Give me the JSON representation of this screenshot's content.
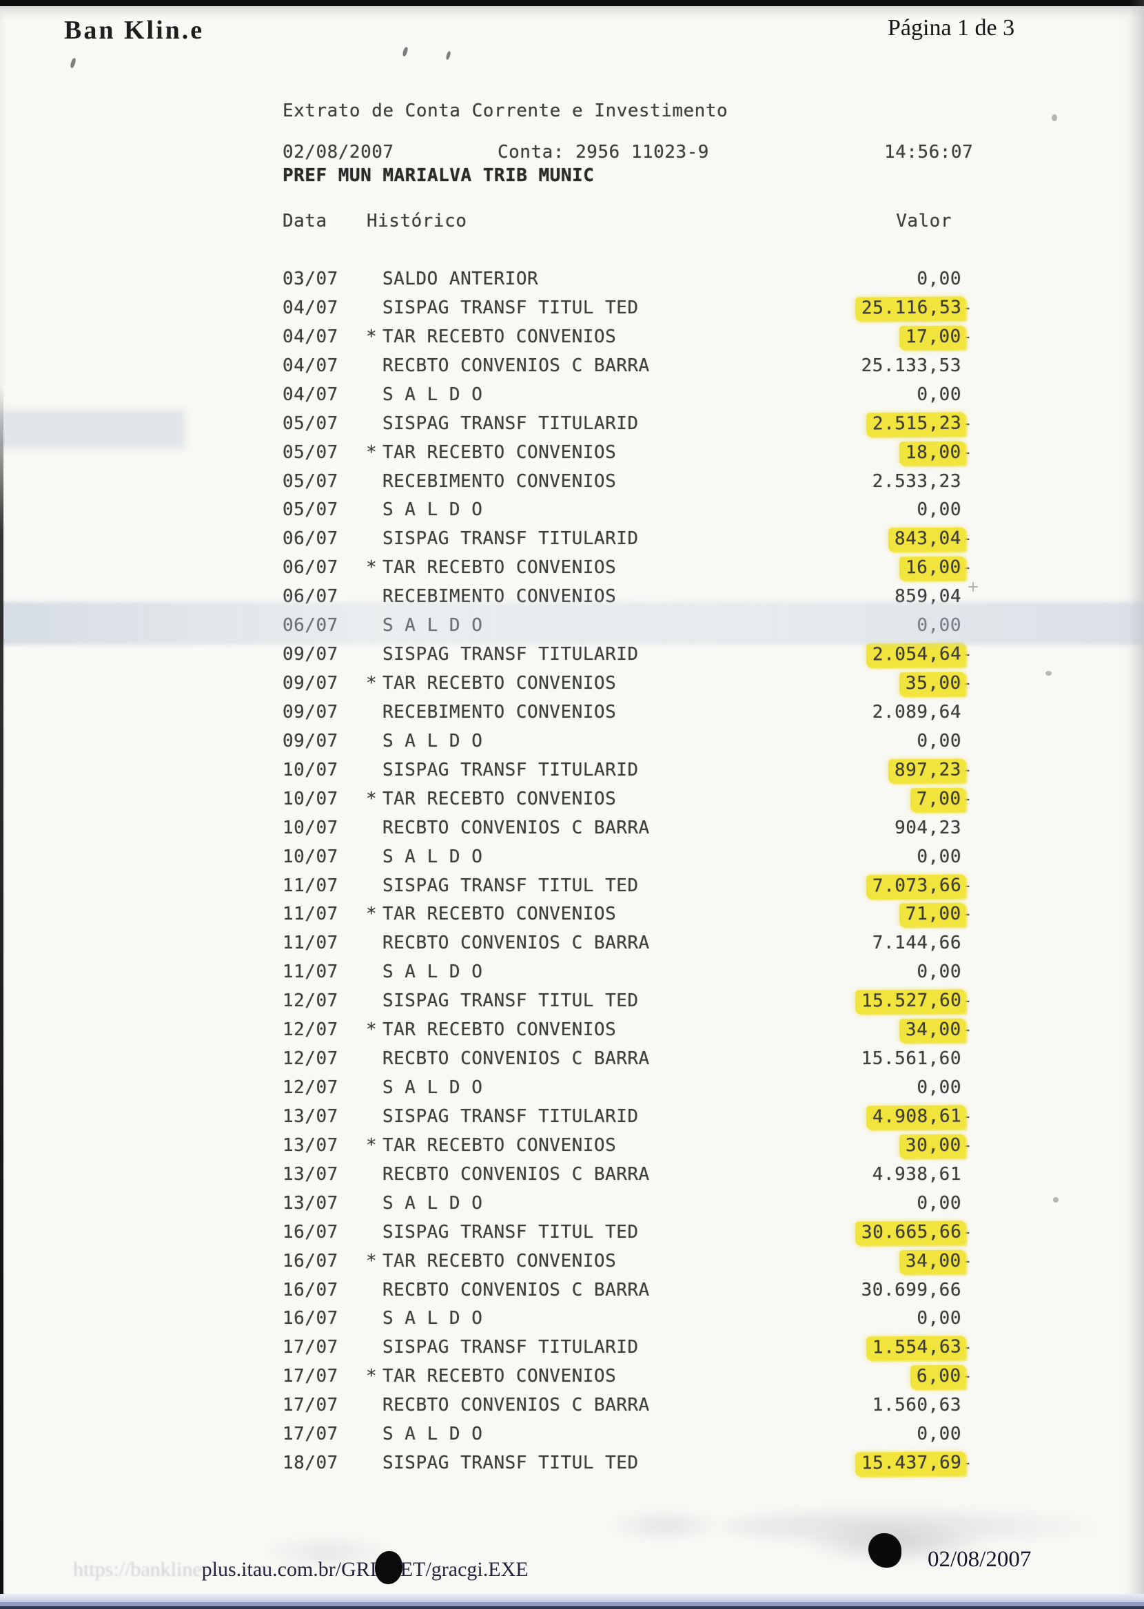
{
  "page": {
    "paper_color": "#f8f8f5",
    "highlight_color": "#f1e43d"
  },
  "header": {
    "brand": "Ban Klin.e",
    "page_indicator": "Página 1 de 3"
  },
  "statement": {
    "title": "Extrato de Conta Corrente e Investimento",
    "date": "02/08/2007",
    "account": "Conta: 2956 11023-9",
    "time": "14:56:07",
    "account_name": "PREF MUN MARIALVA TRIB MUNIC",
    "columns": {
      "date": "Data",
      "history": "Histórico",
      "value": "Valor"
    }
  },
  "rows": [
    {
      "date": "03/07",
      "star": false,
      "history": "SALDO ANTERIOR",
      "value": "0,00",
      "negative": false,
      "highlight": false
    },
    {
      "date": "04/07",
      "star": false,
      "history": "SISPAG TRANSF TITUL TED",
      "value": "25.116,53",
      "negative": true,
      "highlight": true
    },
    {
      "date": "04/07",
      "star": true,
      "history": "TAR RECEBTO CONVENIOS",
      "value": "17,00",
      "negative": true,
      "highlight": true
    },
    {
      "date": "04/07",
      "star": false,
      "history": "RECBTO CONVENIOS C BARRA",
      "value": "25.133,53",
      "negative": false,
      "highlight": false
    },
    {
      "date": "04/07",
      "star": false,
      "history": "S A L D O",
      "value": "0,00",
      "negative": false,
      "highlight": false
    },
    {
      "date": "05/07",
      "star": false,
      "history": "SISPAG TRANSF TITULARID",
      "value": "2.515,23",
      "negative": true,
      "highlight": true
    },
    {
      "date": "05/07",
      "star": true,
      "history": "TAR RECEBTO CONVENIOS",
      "value": "18,00",
      "negative": true,
      "highlight": true
    },
    {
      "date": "05/07",
      "star": false,
      "history": "RECEBIMENTO CONVENIOS",
      "value": "2.533,23",
      "negative": false,
      "highlight": false
    },
    {
      "date": "05/07",
      "star": false,
      "history": "S A L D O",
      "value": "0,00",
      "negative": false,
      "highlight": false
    },
    {
      "date": "06/07",
      "star": false,
      "history": "SISPAG TRANSF TITULARID",
      "value": "843,04",
      "negative": true,
      "highlight": true
    },
    {
      "date": "06/07",
      "star": true,
      "history": "TAR RECEBTO CONVENIOS",
      "value": "16,00",
      "negative": true,
      "highlight": true
    },
    {
      "date": "06/07",
      "star": false,
      "history": "RECEBIMENTO CONVENIOS",
      "value": "859,04",
      "negative": false,
      "highlight": false
    },
    {
      "date": "06/07",
      "star": false,
      "history": "S A L D O",
      "value": "0,00",
      "negative": false,
      "highlight": false
    },
    {
      "date": "09/07",
      "star": false,
      "history": "SISPAG TRANSF TITULARID",
      "value": "2.054,64",
      "negative": true,
      "highlight": true
    },
    {
      "date": "09/07",
      "star": true,
      "history": "TAR RECEBTO CONVENIOS",
      "value": "35,00",
      "negative": true,
      "highlight": true
    },
    {
      "date": "09/07",
      "star": false,
      "history": "RECEBIMENTO CONVENIOS",
      "value": "2.089,64",
      "negative": false,
      "highlight": false
    },
    {
      "date": "09/07",
      "star": false,
      "history": "S A L D O",
      "value": "0,00",
      "negative": false,
      "highlight": false
    },
    {
      "date": "10/07",
      "star": false,
      "history": "SISPAG TRANSF TITULARID",
      "value": "897,23",
      "negative": true,
      "highlight": true
    },
    {
      "date": "10/07",
      "star": true,
      "history": "TAR RECEBTO CONVENIOS",
      "value": "7,00",
      "negative": true,
      "highlight": true
    },
    {
      "date": "10/07",
      "star": false,
      "history": "RECBTO CONVENIOS C BARRA",
      "value": "904,23",
      "negative": false,
      "highlight": false
    },
    {
      "date": "10/07",
      "star": false,
      "history": "S A L D O",
      "value": "0,00",
      "negative": false,
      "highlight": false
    },
    {
      "date": "11/07",
      "star": false,
      "history": "SISPAG TRANSF TITUL TED",
      "value": "7.073,66",
      "negative": true,
      "highlight": true
    },
    {
      "date": "11/07",
      "star": true,
      "history": "TAR RECEBTO CONVENIOS",
      "value": "71,00",
      "negative": true,
      "highlight": true
    },
    {
      "date": "11/07",
      "star": false,
      "history": "RECBTO CONVENIOS C BARRA",
      "value": "7.144,66",
      "negative": false,
      "highlight": false
    },
    {
      "date": "11/07",
      "star": false,
      "history": "S A L D O",
      "value": "0,00",
      "negative": false,
      "highlight": false
    },
    {
      "date": "12/07",
      "star": false,
      "history": "SISPAG TRANSF TITUL TED",
      "value": "15.527,60",
      "negative": true,
      "highlight": true
    },
    {
      "date": "12/07",
      "star": true,
      "history": "TAR RECEBTO CONVENIOS",
      "value": "34,00",
      "negative": true,
      "highlight": true
    },
    {
      "date": "12/07",
      "star": false,
      "history": "RECBTO CONVENIOS C BARRA",
      "value": "15.561,60",
      "negative": false,
      "highlight": false
    },
    {
      "date": "12/07",
      "star": false,
      "history": "S A L D O",
      "value": "0,00",
      "negative": false,
      "highlight": false
    },
    {
      "date": "13/07",
      "star": false,
      "history": "SISPAG TRANSF TITULARID",
      "value": "4.908,61",
      "negative": true,
      "highlight": true
    },
    {
      "date": "13/07",
      "star": true,
      "history": "TAR RECEBTO CONVENIOS",
      "value": "30,00",
      "negative": true,
      "highlight": true
    },
    {
      "date": "13/07",
      "star": false,
      "history": "RECBTO CONVENIOS C BARRA",
      "value": "4.938,61",
      "negative": false,
      "highlight": false
    },
    {
      "date": "13/07",
      "star": false,
      "history": "S A L D O",
      "value": "0,00",
      "negative": false,
      "highlight": false
    },
    {
      "date": "16/07",
      "star": false,
      "history": "SISPAG TRANSF TITUL TED",
      "value": "30.665,66",
      "negative": true,
      "highlight": true
    },
    {
      "date": "16/07",
      "star": true,
      "history": "TAR RECEBTO CONVENIOS",
      "value": "34,00",
      "negative": true,
      "highlight": true
    },
    {
      "date": "16/07",
      "star": false,
      "history": "RECBTO CONVENIOS C BARRA",
      "value": "30.699,66",
      "negative": false,
      "highlight": false
    },
    {
      "date": "16/07",
      "star": false,
      "history": "S A L D O",
      "value": "0,00",
      "negative": false,
      "highlight": false
    },
    {
      "date": "17/07",
      "star": false,
      "history": "SISPAG TRANSF TITULARID",
      "value": "1.554,63",
      "negative": true,
      "highlight": true
    },
    {
      "date": "17/07",
      "star": true,
      "history": "TAR RECEBTO CONVENIOS",
      "value": "6,00",
      "negative": true,
      "highlight": true
    },
    {
      "date": "17/07",
      "star": false,
      "history": "RECBTO CONVENIOS C BARRA",
      "value": "1.560,63",
      "negative": false,
      "highlight": false
    },
    {
      "date": "17/07",
      "star": false,
      "history": "S A L D O",
      "value": "0,00",
      "negative": false,
      "highlight": false
    },
    {
      "date": "18/07",
      "star": false,
      "history": "SISPAG TRANSF TITUL TED",
      "value": "15.437,69",
      "negative": true,
      "highlight": true
    }
  ],
  "footer": {
    "url_faded_prefix": "https://bankline",
    "url_visible": "plus.itau.com.br/GRI",
    "url_after_blob": "ET/gracgi.EXE",
    "date": "02/08/2007"
  }
}
